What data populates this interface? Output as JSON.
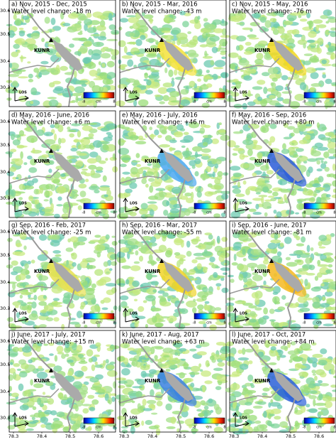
{
  "panels": [
    {
      "title": "a) Nov, 2015 - Dec, 2015",
      "change": "Water level change: -18 m"
    },
    {
      "title": "b) Nov, 2015 - Mar, 2016",
      "change": "Water level change: -43 m"
    },
    {
      "title": "c) Nov, 2015 - May, 2016",
      "change": "Water level change: -76 m"
    },
    {
      "title": "d) May, 2016 - June, 2016",
      "change": "Water level change: +6 m"
    },
    {
      "title": "e) May, 2016 - July, 2016",
      "change": "Water level change: +46 m"
    },
    {
      "title": "f) May, 2016 - Sep, 2016",
      "change": "Water level change: +80 m"
    },
    {
      "title": "g) Sep, 2016 - Feb, 2017",
      "change": "Water level change: -25 m"
    },
    {
      "title": "h) Sep, 2016 - Mar, 2017",
      "change": "Water level change: -55 m"
    },
    {
      "title": "i) Sep, 2016 - June, 2017",
      "change": "Water level change: -81 m"
    },
    {
      "title": "j) June, 2017 - July, 2017",
      "change": "Water level change: +15 m"
    },
    {
      "title": "k) June, 2017 - Aug, 2017",
      "change": "Water level change: +63 m"
    },
    {
      "title": "l) June, 2017 - Oct, 2017",
      "change": "Water level change: +84 m"
    }
  ],
  "site_label": "KUNR",
  "los_label": "LOS",
  "colorbar": {
    "unit": "cm",
    "min": "-8",
    "max": "8"
  },
  "lat_ticks": [
    "30.6",
    "30.5",
    "30.4",
    "30.3"
  ],
  "lon_ticks": [
    "78.3",
    "78.4",
    "78.5",
    "78.6"
  ]
}
